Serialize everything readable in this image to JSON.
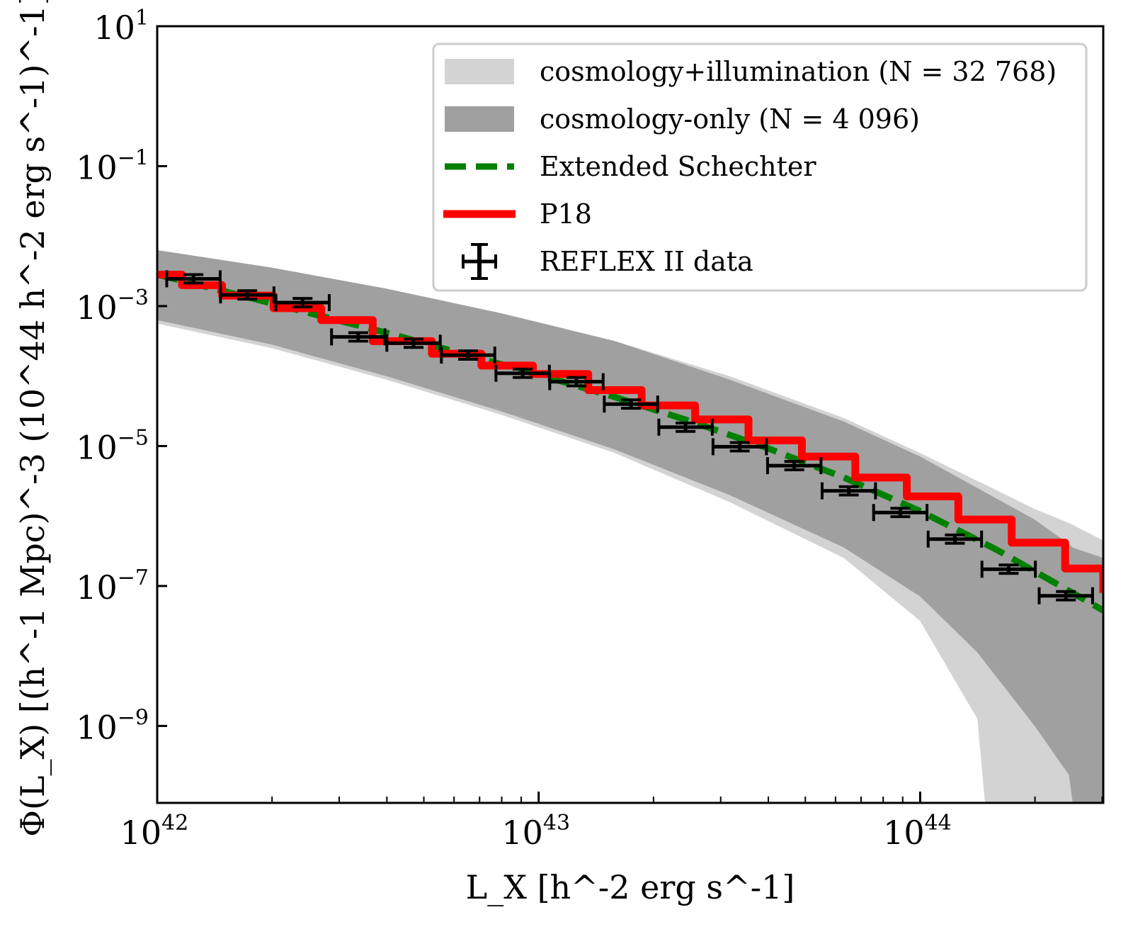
{
  "chart_data": {
    "type": "line",
    "title": "",
    "xlabel": "L_X [h^-2 erg s^-1]",
    "ylabel": "Φ(L_X) [(h^-1 Mpc)^-3 (10^44 h^-2 erg s^-1)^-1]",
    "xscale": "log",
    "yscale": "log",
    "xlim_log10": [
      42,
      44.48
    ],
    "ylim_log10": [
      -10.1,
      1
    ],
    "xticks": [
      {
        "log10": 42,
        "base": "10",
        "exp": "42"
      },
      {
        "log10": 43,
        "base": "10",
        "exp": "43"
      },
      {
        "log10": 44,
        "base": "10",
        "exp": "44"
      }
    ],
    "yticks": [
      {
        "log10": 1,
        "base": "10",
        "exp": "1"
      },
      {
        "log10": -1,
        "base": "10",
        "exp": "−1"
      },
      {
        "log10": -3,
        "base": "10",
        "exp": "−3"
      },
      {
        "log10": -5,
        "base": "10",
        "exp": "−5"
      },
      {
        "log10": -7,
        "base": "10",
        "exp": "−7"
      },
      {
        "log10": -9,
        "base": "10",
        "exp": "−9"
      }
    ],
    "grid": false,
    "legend_position": "top-right",
    "legend": [
      {
        "label": "cosmology+illumination (N = 32 768)",
        "kind": "band",
        "color": "#d3d3d3"
      },
      {
        "label": "cosmology-only (N = 4 096)",
        "kind": "band",
        "color": "#a0a0a0"
      },
      {
        "label": "Extended Schechter",
        "kind": "dashed",
        "color": "#008000"
      },
      {
        "label": "P18",
        "kind": "line",
        "color": "#ff0000"
      },
      {
        "label": "REFLEX II data",
        "kind": "errorbar",
        "color": "#000000"
      }
    ],
    "series": [
      {
        "name": "cosmology+illumination (N = 32 768)",
        "type": "band",
        "color": "#d3d3d3",
        "x_log10": [
          42.0,
          42.3,
          42.6,
          42.9,
          43.2,
          43.5,
          43.8,
          44.0,
          44.15,
          44.17,
          44.3,
          44.39,
          44.48
        ],
        "upper_log10": [
          -2.2,
          -2.45,
          -2.75,
          -3.1,
          -3.5,
          -4.0,
          -4.6,
          -5.1,
          -5.5,
          -5.55,
          -5.9,
          -6.1,
          -6.35
        ],
        "lower_log10": [
          -3.25,
          -3.6,
          -4.05,
          -4.55,
          -5.1,
          -5.8,
          -6.6,
          -7.5,
          -8.9,
          -10.1,
          -10.1,
          -10.1,
          -10.1
        ]
      },
      {
        "name": "cosmology-only (N = 4 096)",
        "type": "band",
        "color": "#a0a0a0",
        "x_log10": [
          42.0,
          42.3,
          42.6,
          42.9,
          43.2,
          43.5,
          43.8,
          44.0,
          44.15,
          44.3,
          44.39,
          44.4,
          44.48
        ],
        "upper_log10": [
          -2.2,
          -2.45,
          -2.75,
          -3.1,
          -3.5,
          -4.05,
          -4.65,
          -5.15,
          -5.6,
          -6.05,
          -6.4,
          -6.45,
          -6.6
        ],
        "lower_log10": [
          -3.2,
          -3.55,
          -4.0,
          -4.5,
          -5.05,
          -5.7,
          -6.45,
          -7.15,
          -7.95,
          -9.0,
          -9.7,
          -10.1,
          -10.1
        ]
      },
      {
        "name": "Extended Schechter",
        "type": "line",
        "style": "dashed",
        "color": "#008000",
        "x_log10": [
          42.0,
          42.2,
          42.4,
          42.6,
          42.8,
          43.0,
          43.2,
          43.4,
          43.6,
          43.8,
          44.0,
          44.2,
          44.4,
          44.48
        ],
        "y_log10": [
          -2.55,
          -2.82,
          -3.1,
          -3.38,
          -3.68,
          -3.98,
          -4.3,
          -4.65,
          -5.03,
          -5.45,
          -5.93,
          -6.48,
          -7.1,
          -7.35
        ]
      },
      {
        "name": "P18",
        "type": "step",
        "color": "#ff0000",
        "x_log10": [
          42.0,
          42.065,
          42.17,
          42.305,
          42.43,
          42.565,
          42.72,
          42.85,
          42.985,
          43.13,
          43.27,
          43.41,
          43.55,
          43.69,
          43.83,
          43.965,
          44.1,
          44.24,
          44.38,
          44.48
        ],
        "y_log10": [
          -2.55,
          -2.7,
          -2.85,
          -3.03,
          -3.2,
          -3.5,
          -3.68,
          -3.85,
          -3.97,
          -4.2,
          -4.42,
          -4.62,
          -4.92,
          -5.15,
          -5.45,
          -5.72,
          -6.05,
          -6.38,
          -6.75,
          -7.1
        ]
      },
      {
        "name": "REFLEX II data",
        "type": "errorbar",
        "color": "#000000",
        "x_log10": [
          42.095,
          42.236,
          42.381,
          42.527,
          42.672,
          42.815,
          42.958,
          43.099,
          43.242,
          43.385,
          43.527,
          43.67,
          43.813,
          43.948,
          44.091,
          44.232,
          44.382
        ],
        "y_log10": [
          -2.61,
          -2.84,
          -2.95,
          -3.44,
          -3.53,
          -3.7,
          -3.96,
          -4.08,
          -4.4,
          -4.73,
          -5.01,
          -5.28,
          -5.64,
          -5.95,
          -6.33,
          -6.76,
          -7.14
        ],
        "xerr_dex": 0.07,
        "yerr_dex": 0.06
      }
    ]
  }
}
